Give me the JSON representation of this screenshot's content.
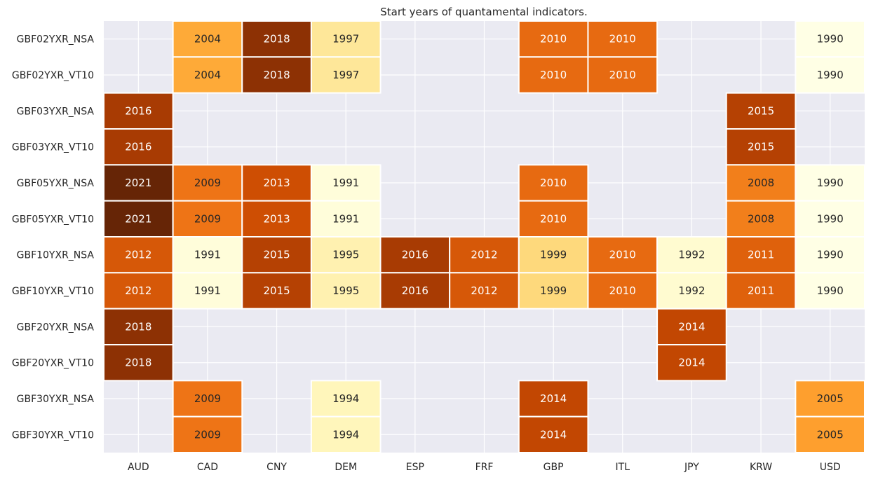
{
  "chart_data": {
    "type": "heatmap",
    "title": "Start years of quantamental indicators.",
    "xlabel": "",
    "ylabel": "",
    "x_categories": [
      "AUD",
      "CAD",
      "CNY",
      "DEM",
      "ESP",
      "FRF",
      "GBP",
      "ITL",
      "JPY",
      "KRW",
      "USD"
    ],
    "y_categories": [
      "GBF02YXR_NSA",
      "GBF02YXR_VT10",
      "GBF03YXR_NSA",
      "GBF03YXR_VT10",
      "GBF05YXR_NSA",
      "GBF05YXR_VT10",
      "GBF10YXR_NSA",
      "GBF10YXR_VT10",
      "GBF20YXR_NSA",
      "GBF20YXR_VT10",
      "GBF30YXR_NSA",
      "GBF30YXR_VT10"
    ],
    "values": [
      [
        null,
        2004,
        2018,
        1997,
        null,
        null,
        2010,
        2010,
        null,
        null,
        1990
      ],
      [
        null,
        2004,
        2018,
        1997,
        null,
        null,
        2010,
        2010,
        null,
        null,
        1990
      ],
      [
        2016,
        null,
        null,
        null,
        null,
        null,
        null,
        null,
        null,
        2015,
        null
      ],
      [
        2016,
        null,
        null,
        null,
        null,
        null,
        null,
        null,
        null,
        2015,
        null
      ],
      [
        2021,
        2009,
        2013,
        1991,
        null,
        null,
        2010,
        null,
        null,
        2008,
        1990
      ],
      [
        2021,
        2009,
        2013,
        1991,
        null,
        null,
        2010,
        null,
        null,
        2008,
        1990
      ],
      [
        2012,
        1991,
        2015,
        1995,
        2016,
        2012,
        1999,
        2010,
        1992,
        2011,
        1990
      ],
      [
        2012,
        1991,
        2015,
        1995,
        2016,
        2012,
        1999,
        2010,
        1992,
        2011,
        1990
      ],
      [
        2018,
        null,
        null,
        null,
        null,
        null,
        null,
        null,
        2014,
        null,
        null
      ],
      [
        2018,
        null,
        null,
        null,
        null,
        null,
        null,
        null,
        2014,
        null,
        null
      ],
      [
        null,
        2009,
        null,
        1994,
        null,
        null,
        2014,
        null,
        null,
        null,
        2005
      ],
      [
        null,
        2009,
        null,
        1994,
        null,
        null,
        2014,
        null,
        null,
        null,
        2005
      ]
    ],
    "vmin": 1990,
    "vmax": 2021,
    "colormap": [
      "#ffffe5",
      "#fff7bc",
      "#fee391",
      "#fec44f",
      "#fe9929",
      "#ec7014",
      "#cc4c02",
      "#993404",
      "#662506"
    ],
    "missing_color": "#eaeaf2",
    "grid": true,
    "grid_color": "#ffffff",
    "legend": "none",
    "colorbar": false
  }
}
